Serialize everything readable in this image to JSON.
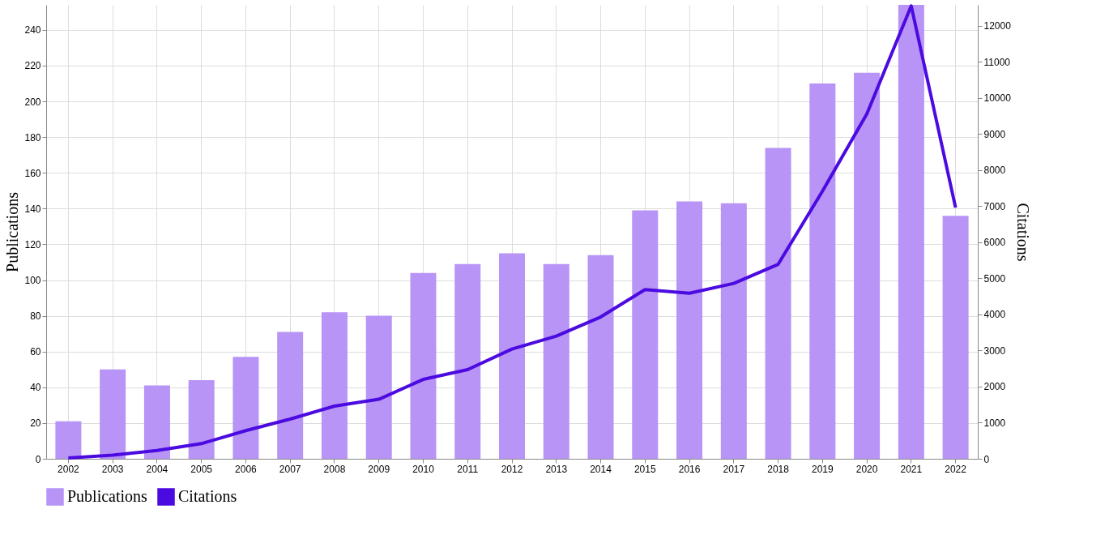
{
  "chart_data": {
    "type": "bar",
    "categories": [
      "2002",
      "2003",
      "2004",
      "2005",
      "2006",
      "2007",
      "2008",
      "2009",
      "2010",
      "2011",
      "2012",
      "2013",
      "2014",
      "2015",
      "2016",
      "2017",
      "2018",
      "2019",
      "2020",
      "2021",
      "2022"
    ],
    "series": [
      {
        "name": "Publications",
        "color": "#b794f6",
        "values": [
          21,
          50,
          41,
          44,
          57,
          71,
          82,
          80,
          104,
          109,
          115,
          109,
          114,
          139,
          144,
          143,
          174,
          210,
          216,
          254,
          136
        ]
      },
      {
        "name": "Citations",
        "type": "line",
        "axis": "y2",
        "color": "#4b0be0",
        "values": [
          20,
          100,
          230,
          420,
          780,
          1100,
          1460,
          1650,
          2200,
          2470,
          3040,
          3400,
          3930,
          4690,
          4590,
          4860,
          5390,
          7420,
          9560,
          12550,
          6960
        ]
      }
    ],
    "ylabel": "Publications",
    "y2label": "Citations",
    "ylim": [
      0,
      254
    ],
    "yticks": [
      0,
      20,
      40,
      60,
      80,
      100,
      120,
      140,
      160,
      180,
      200,
      220,
      240
    ],
    "y2lim": [
      0,
      12580
    ],
    "y2ticks": [
      0,
      1000,
      2000,
      3000,
      4000,
      5000,
      6000,
      7000,
      8000,
      9000,
      10000,
      11000,
      12000
    ],
    "grid": true,
    "legend": "bottom",
    "marker": "none",
    "line_style": "solid"
  }
}
